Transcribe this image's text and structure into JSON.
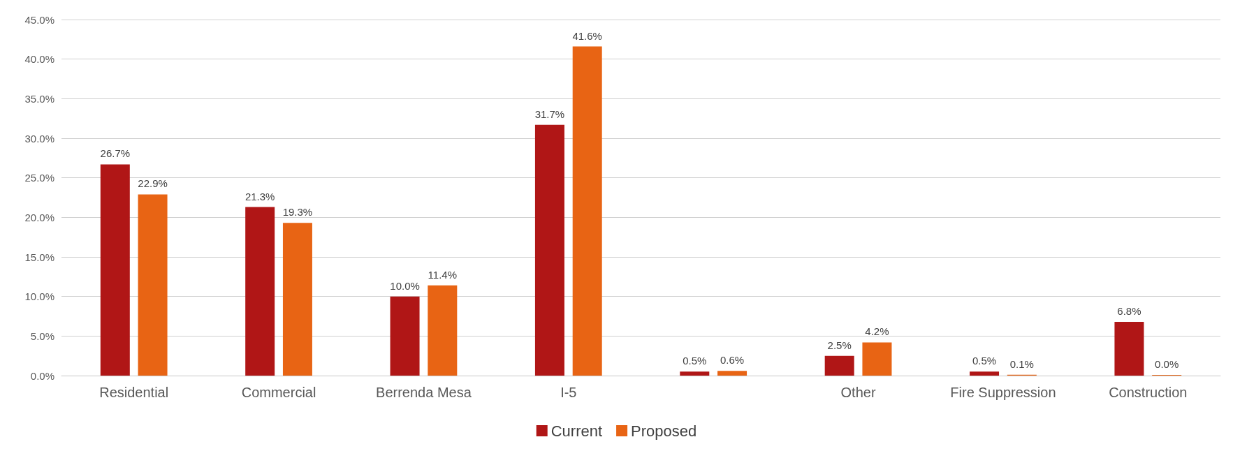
{
  "chart_data": {
    "type": "bar",
    "categories": [
      "Residential",
      "Commercial",
      "Berrenda Mesa",
      "I-5",
      null,
      "Other",
      "Fire Suppression",
      "Construction"
    ],
    "series": [
      {
        "name": "Current",
        "color": "#b01616",
        "values": [
          26.7,
          21.3,
          10.0,
          31.7,
          0.5,
          2.5,
          0.5,
          6.8
        ],
        "value_labels": [
          "26.7%",
          "21.3%",
          "10.0%",
          "31.7%",
          "0.5%",
          "2.5%",
          "0.5%",
          "6.8%"
        ]
      },
      {
        "name": "Proposed",
        "color": "#e86414",
        "values": [
          22.9,
          19.3,
          11.4,
          41.6,
          0.6,
          4.2,
          0.1,
          0.0
        ],
        "value_labels": [
          "22.9%",
          "19.3%",
          "11.4%",
          "41.6%",
          "0.6%",
          "4.2%",
          "0.1%",
          "0.0%"
        ]
      }
    ],
    "ylim": [
      0,
      45
    ],
    "yticks": [
      {
        "value": 0,
        "label": "0.0%"
      },
      {
        "value": 5,
        "label": "5.0%"
      },
      {
        "value": 10,
        "label": "10.0%"
      },
      {
        "value": 15,
        "label": "15.0%"
      },
      {
        "value": 20,
        "label": "20.0%"
      },
      {
        "value": 25,
        "label": "25.0%"
      },
      {
        "value": 30,
        "label": "30.0%"
      },
      {
        "value": 35,
        "label": "35.0%"
      },
      {
        "value": 40,
        "label": "40.0%"
      },
      {
        "value": 45,
        "label": "45.0%"
      }
    ],
    "grid": "y",
    "legend": "bottom"
  }
}
